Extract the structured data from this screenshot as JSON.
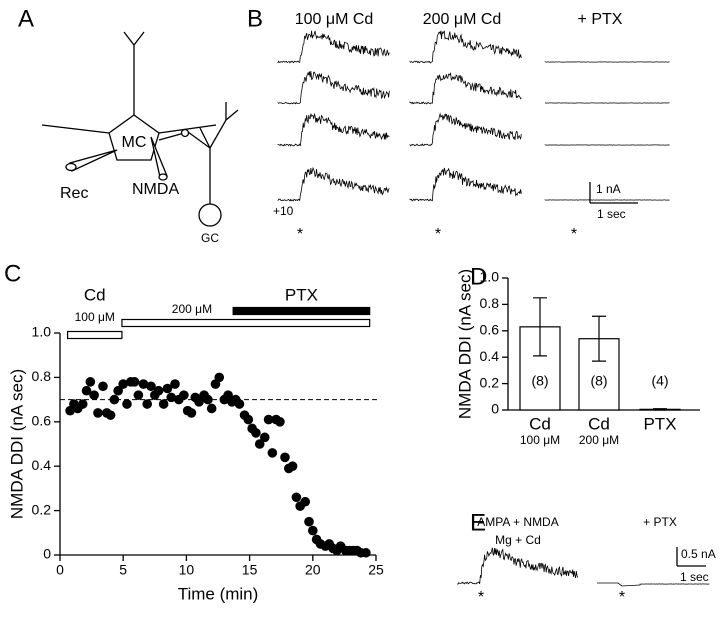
{
  "panel_labels": [
    "A",
    "B",
    "C",
    "D",
    "E"
  ],
  "diagram_a": {
    "cell": "MC",
    "recording": "Rec",
    "puffer": "NMDA",
    "granule": "GC"
  },
  "traces_b": {
    "headers": [
      "100 μM Cd",
      "200 μM Cd",
      "+ PTX"
    ],
    "offset_label": "+10",
    "scale_y": "1 nA",
    "scale_x": "1 sec",
    "stim": "*"
  },
  "traces_e": {
    "header_lines": [
      "AMPA + NMDA",
      "Mg + Cd"
    ],
    "ptx_header": "+ PTX",
    "scale_y": "0.5 nA",
    "scale_x": "1 sec",
    "stim": "*"
  },
  "chart_data": [
    {
      "type": "scatter",
      "xlabel": "Time (min)",
      "ylabel": "NMDA DDI (nA sec)",
      "xlim": [
        0,
        25
      ],
      "xticks": [
        0,
        5,
        10,
        15,
        20,
        25
      ],
      "ylim": [
        0,
        1
      ],
      "yticks": [
        0,
        0.2,
        0.4,
        0.6,
        0.8,
        {
          "value": 1,
          "label": "1.0"
        }
      ],
      "color": "#000000",
      "x": [
        0.8,
        1.1,
        1.4,
        1.8,
        2.1,
        2.4,
        2.7,
        3.0,
        3.4,
        3.7,
        4.0,
        4.3,
        4.6,
        5.0,
        5.3,
        5.6,
        5.9,
        6.2,
        6.6,
        6.9,
        7.2,
        7.5,
        7.8,
        8.2,
        8.5,
        8.8,
        9.1,
        9.4,
        9.8,
        10.1,
        10.4,
        10.7,
        11.0,
        11.4,
        11.7,
        12.0,
        12.3,
        12.6,
        13.0,
        13.3,
        13.6,
        13.9,
        14.2,
        14.6,
        14.9,
        15.2,
        15.5,
        15.8,
        16.2,
        16.5,
        16.8,
        17.1,
        17.4,
        17.8,
        18.1,
        18.4,
        18.7,
        19.0,
        19.4,
        19.7,
        20.0,
        20.3,
        20.6,
        21.0,
        21.3,
        21.6,
        21.9,
        22.2,
        22.6,
        22.9,
        23.2,
        23.5,
        23.8,
        24.2
      ],
      "values": [
        0.65,
        0.68,
        0.66,
        0.68,
        0.74,
        0.78,
        0.72,
        0.64,
        0.76,
        0.64,
        0.63,
        0.7,
        0.74,
        0.77,
        0.68,
        0.78,
        0.78,
        0.72,
        0.77,
        0.68,
        0.76,
        0.72,
        0.74,
        0.68,
        0.75,
        0.71,
        0.77,
        0.7,
        0.72,
        0.65,
        0.64,
        0.71,
        0.69,
        0.72,
        0.7,
        0.66,
        0.77,
        0.8,
        0.7,
        0.72,
        0.69,
        0.7,
        0.68,
        0.63,
        0.61,
        0.57,
        0.55,
        0.5,
        0.53,
        0.61,
        0.46,
        0.61,
        0.6,
        0.44,
        0.39,
        0.4,
        0.26,
        0.22,
        0.24,
        0.15,
        0.11,
        0.07,
        0.05,
        0.04,
        0.05,
        0.03,
        0.02,
        0.04,
        0.02,
        0.02,
        0.02,
        0.02,
        0.01,
        0.01
      ],
      "reference_line": 0.7,
      "drug_label": "Cd",
      "drug_bars": [
        {
          "name": "100 μM",
          "start": 0.6,
          "end": 4.9,
          "color": "#ffffff"
        },
        {
          "name": "200 μM",
          "start": 4.9,
          "end": 24.5,
          "color": "#ffffff"
        },
        {
          "name": "PTX",
          "start": 13.7,
          "end": 24.5,
          "color": "#000000"
        }
      ]
    },
    {
      "type": "bar",
      "ylabel": "NMDA DDI (nA sec)",
      "categories": [
        "Cd",
        "Cd",
        "PTX"
      ],
      "category_sublabels": [
        "100 μM",
        "200 μM",
        null
      ],
      "values": [
        0.63,
        0.54,
        0.005
      ],
      "errors": [
        0.22,
        0.17,
        0.005
      ],
      "n_labels": [
        "(8)",
        "(8)",
        "(4)"
      ],
      "color": "#ffffff",
      "ylim": [
        0,
        1
      ],
      "yticks": [
        0,
        0.2,
        0.4,
        0.6,
        0.8,
        {
          "value": 1,
          "label": "1.0"
        }
      ]
    }
  ]
}
